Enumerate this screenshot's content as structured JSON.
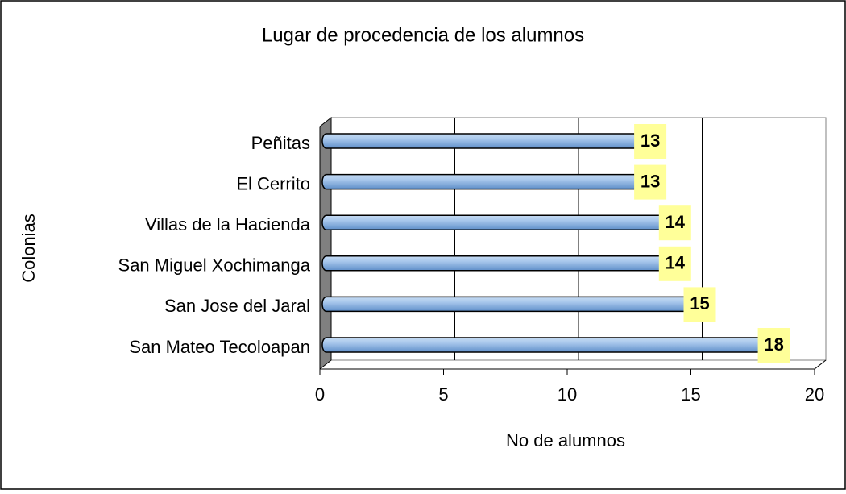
{
  "chart_data": {
    "type": "bar",
    "orientation": "horizontal",
    "title": "Lugar de procedencia de los alumnos",
    "xlabel": "No de alumnos",
    "ylabel": "Colonias",
    "categories": [
      "San Mateo Tecoloapan",
      "San Jose del Jaral",
      "San Miguel Xochimanga",
      "Villas de la Hacienda",
      "El Cerrito",
      "Peñitas"
    ],
    "values": [
      18,
      15,
      14,
      14,
      13,
      13
    ],
    "color": "#8db4e2",
    "xlim": [
      0,
      20
    ],
    "xticks": [
      0,
      5,
      10,
      15,
      20
    ],
    "grid": true
  }
}
